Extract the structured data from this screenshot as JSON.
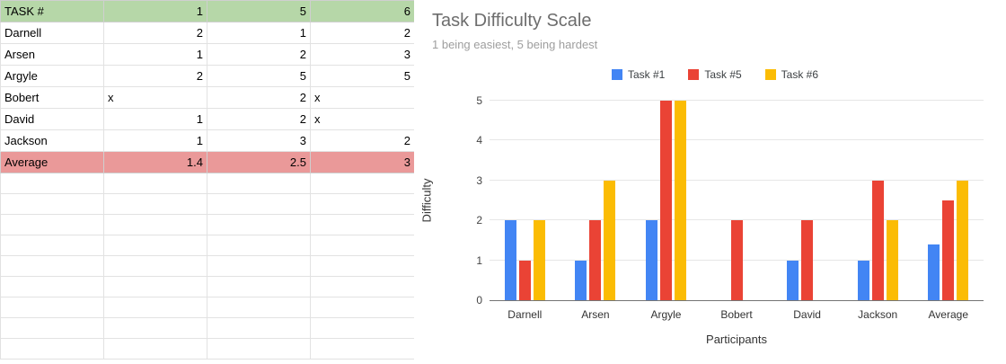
{
  "spreadsheet": {
    "header_row": {
      "label": "TASK #",
      "task_numbers": [
        "1",
        "5",
        "6"
      ]
    },
    "rows": [
      {
        "name": "Darnell",
        "values": [
          "2",
          "1",
          "2"
        ]
      },
      {
        "name": "Arsen",
        "values": [
          "1",
          "2",
          "3"
        ]
      },
      {
        "name": "Argyle",
        "values": [
          "2",
          "5",
          "5"
        ]
      },
      {
        "name": "Bobert",
        "values": [
          "x",
          "2",
          "x"
        ]
      },
      {
        "name": "David",
        "values": [
          "1",
          "2",
          "x"
        ]
      },
      {
        "name": "Jackson",
        "values": [
          "1",
          "3",
          "2"
        ]
      }
    ],
    "average_row": {
      "name": "Average",
      "values": [
        "1.4",
        "2.5",
        "3"
      ]
    },
    "empty_row_count": 9,
    "colors": {
      "header_bg": "#b6d7a8",
      "average_bg": "#ea9999",
      "gridline": "#e2e2e2"
    }
  },
  "chart_data": {
    "type": "bar",
    "title": "Task Difficulty Scale",
    "subtitle": "1 being easiest, 5 being hardest",
    "xlabel": "Participants",
    "ylabel": "Difficulty",
    "categories": [
      "Darnell",
      "Arsen",
      "Argyle",
      "Bobert",
      "David",
      "Jackson",
      "Average"
    ],
    "series": [
      {
        "name": "Task #1",
        "color": "#4285f4",
        "values": [
          2,
          1,
          2,
          0,
          1,
          1,
          1.4
        ]
      },
      {
        "name": "Task #5",
        "color": "#ea4335",
        "values": [
          1,
          2,
          5,
          2,
          2,
          3,
          2.5
        ]
      },
      {
        "name": "Task #6",
        "color": "#fbbc04",
        "values": [
          2,
          3,
          5,
          0,
          0,
          2,
          3
        ]
      }
    ],
    "ylim": [
      0,
      5
    ],
    "yticks": [
      0,
      1,
      2,
      3,
      4,
      5
    ],
    "legend_position": "top",
    "grid": true
  }
}
